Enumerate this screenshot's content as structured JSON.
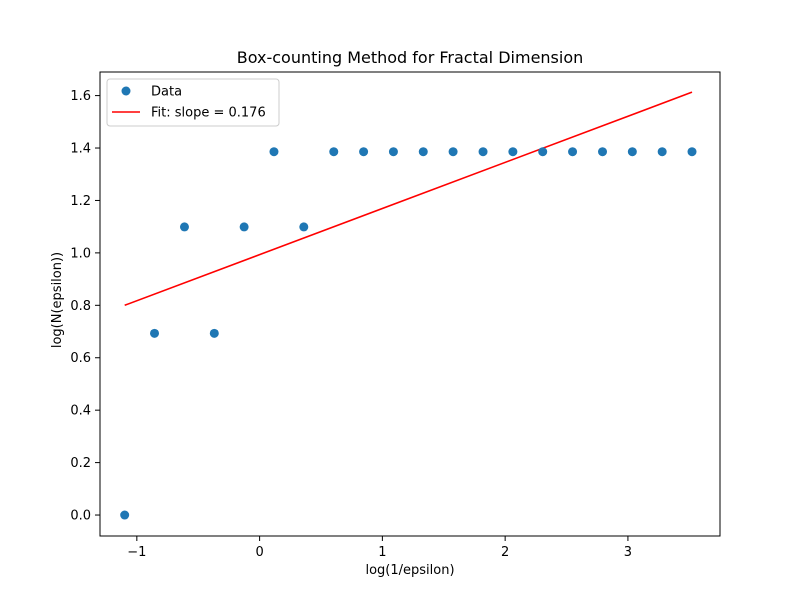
{
  "chart_data": {
    "type": "scatter",
    "title": "Box-counting Method for Fractal Dimension",
    "xlabel": "log(1/epsilon)",
    "ylabel": "log(N(epsilon))",
    "xlim": [
      -1.3,
      3.75
    ],
    "ylim": [
      -0.08,
      1.69
    ],
    "xticks": [
      -1,
      0,
      1,
      2,
      3
    ],
    "xtick_labels": [
      "−1",
      "0",
      "1",
      "2",
      "3"
    ],
    "yticks": [
      0.0,
      0.2,
      0.4,
      0.6,
      0.8,
      1.0,
      1.2,
      1.4,
      1.6
    ],
    "ytick_labels": [
      "0.0",
      "0.2",
      "0.4",
      "0.6",
      "0.8",
      "1.0",
      "1.2",
      "1.4",
      "1.6"
    ],
    "grid": false,
    "legend_position": "top-left",
    "series": [
      {
        "name": "Data",
        "kind": "scatter",
        "color": "#1f77b4",
        "x": [
          -1.099,
          -0.856,
          -0.612,
          -0.369,
          -0.126,
          0.117,
          0.36,
          0.604,
          0.847,
          1.09,
          1.333,
          1.576,
          1.82,
          2.063,
          2.306,
          2.549,
          2.793,
          3.036,
          3.279,
          3.522
        ],
        "y": [
          0.0,
          0.693,
          1.099,
          0.693,
          1.099,
          1.386,
          1.099,
          1.386,
          1.386,
          1.386,
          1.386,
          1.386,
          1.386,
          1.386,
          1.386,
          1.386,
          1.386,
          1.386,
          1.386,
          1.386
        ]
      },
      {
        "name": "Fit: slope = 0.176",
        "kind": "line",
        "color": "#ff0000",
        "x": [
          -1.099,
          3.522
        ],
        "y": [
          0.8,
          1.613
        ]
      }
    ]
  }
}
